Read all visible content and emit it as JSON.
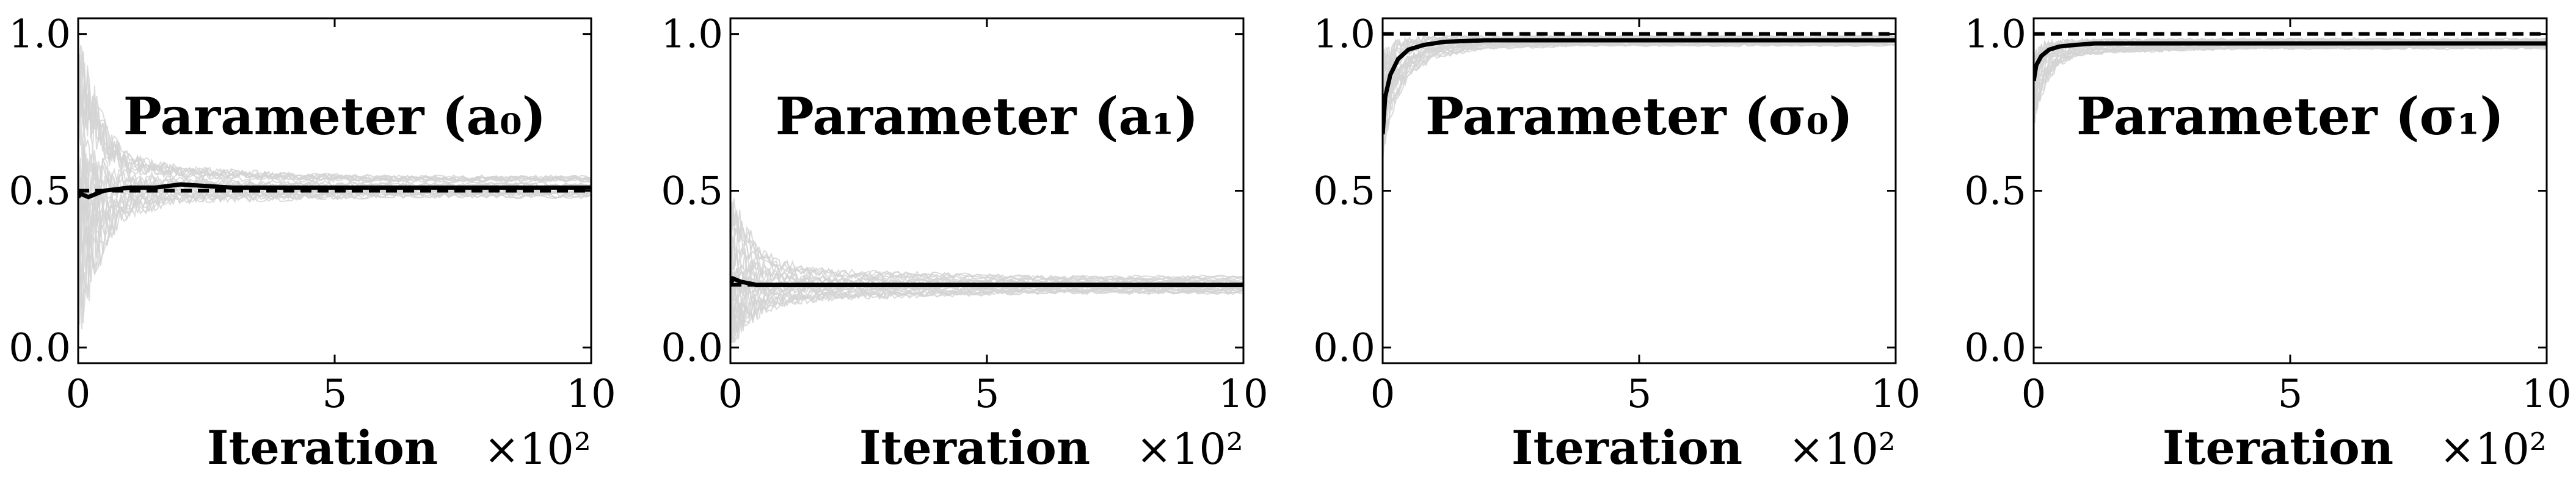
{
  "chart_data": [
    {
      "type": "line",
      "title": "Parameter (a₀)",
      "xlabel": "Iteration",
      "x_multiplier": "×10²",
      "xlim": [
        0,
        10
      ],
      "ylim": [
        -0.05,
        1.05
      ],
      "xticks": [
        "0",
        "5",
        "10"
      ],
      "yticks": [
        "0.0",
        "0.5",
        "1.0"
      ],
      "true_value": 0.5,
      "true_value_style": "dashed",
      "mean_trajectory": {
        "x": [
          0,
          0.05,
          0.2,
          0.5,
          1,
          1.5,
          2,
          3,
          4,
          5,
          6,
          7,
          8,
          9,
          10
        ],
        "y": [
          0.48,
          0.49,
          0.48,
          0.5,
          0.51,
          0.51,
          0.52,
          0.51,
          0.51,
          0.51,
          0.51,
          0.51,
          0.51,
          0.51,
          0.51
        ]
      },
      "run_band": {
        "x": [
          0,
          0.3,
          0.6,
          1,
          2,
          4,
          6,
          8,
          10
        ],
        "lower": [
          -0.05,
          0.15,
          0.3,
          0.4,
          0.45,
          0.46,
          0.47,
          0.47,
          0.47
        ],
        "upper": [
          1.0,
          0.85,
          0.7,
          0.62,
          0.58,
          0.56,
          0.55,
          0.55,
          0.55
        ]
      }
    },
    {
      "type": "line",
      "title": "Parameter (a₁)",
      "xlabel": "Iteration",
      "x_multiplier": "×10²",
      "xlim": [
        0,
        10
      ],
      "ylim": [
        -0.05,
        1.05
      ],
      "xticks": [
        "0",
        "5",
        "10"
      ],
      "yticks": [
        "0.0",
        "0.5",
        "1.0"
      ],
      "true_value": 0.2,
      "true_value_style": "dashed",
      "mean_trajectory": {
        "x": [
          0,
          0.05,
          0.2,
          0.5,
          1,
          2,
          3,
          4,
          5,
          6,
          7,
          8,
          9,
          10
        ],
        "y": [
          0.2,
          0.22,
          0.21,
          0.2,
          0.2,
          0.2,
          0.2,
          0.2,
          0.2,
          0.2,
          0.2,
          0.2,
          0.2,
          0.2
        ]
      },
      "run_band": {
        "x": [
          0,
          0.3,
          0.6,
          1,
          2,
          4,
          6,
          8,
          10
        ],
        "lower": [
          0.0,
          0.05,
          0.1,
          0.13,
          0.15,
          0.16,
          0.17,
          0.17,
          0.17
        ],
        "upper": [
          0.5,
          0.4,
          0.32,
          0.28,
          0.25,
          0.24,
          0.23,
          0.23,
          0.23
        ]
      }
    },
    {
      "type": "line",
      "title": "Parameter (σ₀)",
      "xlabel": "Iteration",
      "x_multiplier": "×10²",
      "xlim": [
        0,
        10
      ],
      "ylim": [
        -0.05,
        1.05
      ],
      "xticks": [
        "0",
        "5",
        "10"
      ],
      "yticks": [
        "0.0",
        "0.5",
        "1.0"
      ],
      "true_value": 1.0,
      "true_value_style": "dashed",
      "mean_trajectory": {
        "x": [
          0,
          0.05,
          0.15,
          0.3,
          0.5,
          0.8,
          1.2,
          2,
          3,
          4,
          5,
          6,
          7,
          8,
          9,
          10
        ],
        "y": [
          0.68,
          0.8,
          0.87,
          0.92,
          0.95,
          0.965,
          0.975,
          0.98,
          0.98,
          0.98,
          0.98,
          0.98,
          0.98,
          0.98,
          0.98,
          0.98
        ]
      },
      "run_band": {
        "x": [
          0,
          0.2,
          0.5,
          1,
          2,
          4,
          6,
          8,
          10
        ],
        "lower": [
          0.6,
          0.75,
          0.86,
          0.92,
          0.95,
          0.96,
          0.96,
          0.96,
          0.96
        ],
        "upper": [
          0.95,
          0.98,
          0.99,
          0.995,
          0.995,
          0.995,
          0.995,
          0.995,
          0.995
        ]
      }
    },
    {
      "type": "line",
      "title": "Parameter (σ₁)",
      "xlabel": "Iteration",
      "x_multiplier": "×10²",
      "xlim": [
        0,
        10
      ],
      "ylim": [
        -0.05,
        1.05
      ],
      "xticks": [
        "0",
        "5",
        "10"
      ],
      "yticks": [
        "0.0",
        "0.5",
        "1.0"
      ],
      "true_value": 1.0,
      "true_value_style": "dashed",
      "mean_trajectory": {
        "x": [
          0,
          0.05,
          0.15,
          0.3,
          0.5,
          0.8,
          1.2,
          2,
          3,
          4,
          5,
          6,
          7,
          8,
          9,
          10
        ],
        "y": [
          0.85,
          0.9,
          0.93,
          0.95,
          0.96,
          0.965,
          0.97,
          0.97,
          0.97,
          0.97,
          0.97,
          0.97,
          0.97,
          0.97,
          0.97,
          0.97
        ]
      },
      "run_band": {
        "x": [
          0,
          0.2,
          0.5,
          1,
          2,
          4,
          6,
          8,
          10
        ],
        "lower": [
          0.7,
          0.82,
          0.9,
          0.93,
          0.94,
          0.95,
          0.95,
          0.95,
          0.95
        ],
        "upper": [
          0.98,
          0.99,
          0.99,
          0.99,
          0.99,
          0.99,
          0.99,
          0.99,
          0.99
        ]
      }
    }
  ],
  "colors": {
    "mean_line": "#000000",
    "true_value_line": "#000000",
    "run_lines": "#d3d3d3",
    "axes": "#000000"
  }
}
